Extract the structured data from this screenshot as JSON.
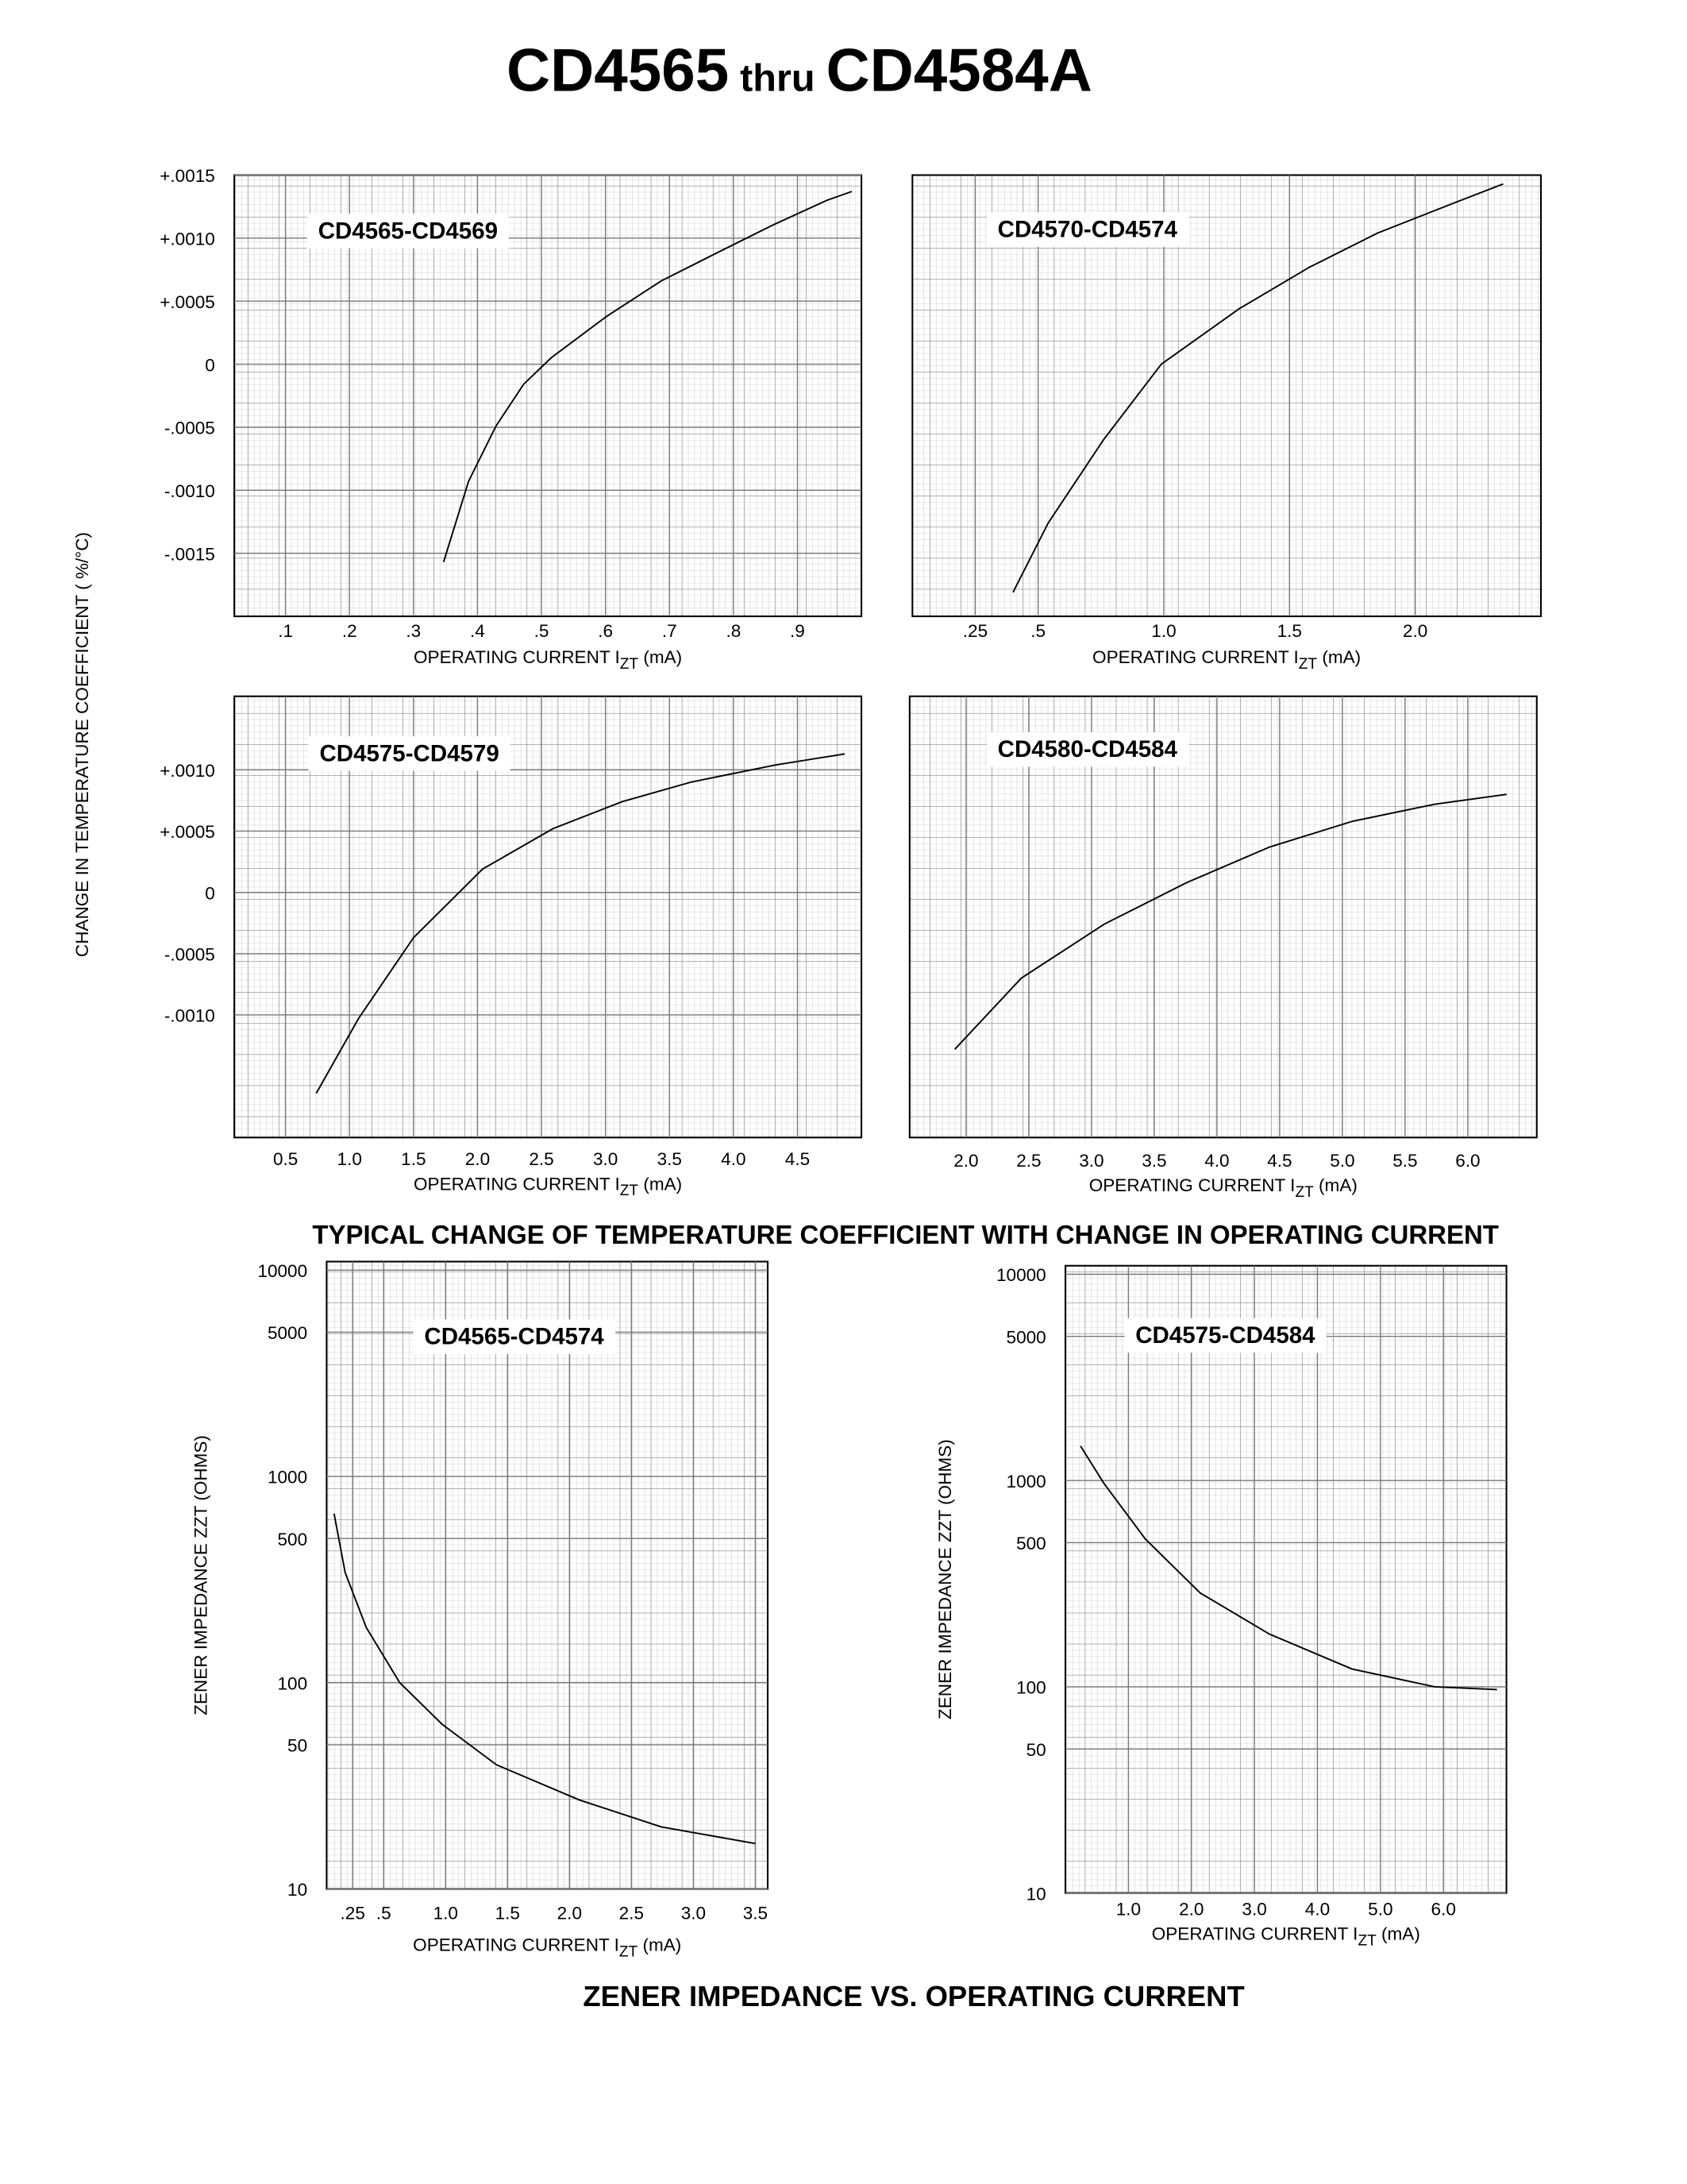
{
  "title_parts": [
    "CD4565",
    "thru",
    "CD4584A"
  ],
  "temp_ylabel": "CHANGE IN TEMPERATURE COEFFICIENT ( %/°C)",
  "caption_temp": "TYPICAL CHANGE OF TEMPERATURE COEFFICIENT WITH CHANGE IN OPERATING CURRENT",
  "caption_zener": "ZENER IMPEDANCE VS. OPERATING CURRENT",
  "chart_data": [
    {
      "type": "line",
      "title": "CD4565-CD4569",
      "color": "#000000",
      "xlabel": [
        "OPERATING CURRENT I",
        "ZT",
        " (mA)"
      ],
      "xlim": [
        0.02,
        1.0
      ],
      "ylim": [
        -0.002,
        0.0015
      ],
      "xticks": [
        {
          "value": 0.1,
          "label": ".1"
        },
        {
          "value": 0.2,
          "label": ".2"
        },
        {
          "value": 0.3,
          "label": ".3"
        },
        {
          "value": 0.4,
          "label": ".4"
        },
        {
          "value": 0.5,
          "label": ".5"
        },
        {
          "value": 0.6,
          "label": ".6"
        },
        {
          "value": 0.7,
          "label": ".7"
        },
        {
          "value": 0.8,
          "label": ".8"
        },
        {
          "value": 0.9,
          "label": ".9"
        }
      ],
      "yticks": [
        {
          "value": 0.0015,
          "label": "+.0015"
        },
        {
          "value": 0.001,
          "label": "+.0010"
        },
        {
          "value": 0.0005,
          "label": "+.0005"
        },
        0,
        {
          "value": -0.0005,
          "label": "-.0005"
        },
        {
          "value": -0.001,
          "label": "-.0010"
        },
        {
          "value": -0.0015,
          "label": "-.0015"
        }
      ],
      "x": [
        0.347,
        0.386,
        0.429,
        0.472,
        0.515,
        0.602,
        0.687,
        0.773,
        0.86,
        0.946,
        0.985
      ],
      "values": [
        -0.00157,
        -0.00093,
        -0.00049,
        -0.00016,
        5e-05,
        0.00038,
        0.00066,
        0.00088,
        0.0011,
        0.0013,
        0.00137
      ]
    },
    {
      "type": "line",
      "title": "CD4570-CD4574",
      "color": "#000000",
      "xlabel": [
        "OPERATING CURRENT I",
        "ZT",
        " (mA)"
      ],
      "xlim": [
        0,
        2.5
      ],
      "ylim": [
        -0.002,
        0.0015
      ],
      "xticks": [
        {
          "value": 0.25,
          "label": ".25"
        },
        {
          "value": 0.5,
          "label": ".5"
        },
        {
          "value": 1.0,
          "label": "1.0"
        },
        1.5,
        {
          "value": 2.0,
          "label": "2.0"
        }
      ],
      "x": [
        0.4,
        0.54,
        0.76,
        0.99,
        1.3,
        1.58,
        1.85,
        2.13,
        2.35
      ],
      "values": [
        -0.00181,
        -0.00126,
        -0.0006,
        0,
        0.00044,
        0.00077,
        0.00104,
        0.00126,
        0.00143
      ]
    },
    {
      "type": "line",
      "title": "CD4575-CD4579",
      "color": "#000000",
      "xlabel": [
        "OPERATING CURRENT I",
        "ZT",
        " (mA)"
      ],
      "xlim": [
        0.1,
        5.0
      ],
      "ylim": [
        -0.002,
        0.0016
      ],
      "xticks": [
        0.5,
        {
          "value": 1.0,
          "label": "1.0"
        },
        1.5,
        {
          "value": 2.0,
          "label": "2.0"
        },
        2.5,
        {
          "value": 3.0,
          "label": "3.0"
        },
        3.5,
        {
          "value": 4.0,
          "label": "4.0"
        },
        4.5
      ],
      "yticks": [
        {
          "value": 0.001,
          "label": "+.0010"
        },
        {
          "value": 0.0005,
          "label": "+.0005"
        },
        0,
        {
          "value": -0.0005,
          "label": "-.0005"
        },
        {
          "value": -0.001,
          "label": "-.0010"
        }
      ],
      "x": [
        0.74,
        1.07,
        1.5,
        2.04,
        2.59,
        3.13,
        3.67,
        4.33,
        4.87
      ],
      "values": [
        -0.00164,
        -0.00103,
        -0.00037,
        0.00019,
        0.00052,
        0.00074,
        0.0009,
        0.00104,
        0.00113
      ]
    },
    {
      "type": "line",
      "title": "CD4580-CD4584",
      "color": "#000000",
      "xlabel": [
        "OPERATING CURRENT I",
        "ZT",
        " (mA)"
      ],
      "xlim": [
        1.55,
        6.55
      ],
      "ylim": [
        -0.002,
        0.0016
      ],
      "xticks": [
        {
          "value": 2.0,
          "label": "2.0"
        },
        2.5,
        {
          "value": 3.0,
          "label": "3.0"
        },
        3.5,
        {
          "value": 4.0,
          "label": "4.0"
        },
        4.5,
        {
          "value": 5.0,
          "label": "5.0"
        },
        5.5,
        {
          "value": 6.0,
          "label": "6.0"
        }
      ],
      "x": [
        1.91,
        2.44,
        3.1,
        3.76,
        4.42,
        5.08,
        5.74,
        6.31
      ],
      "values": [
        -0.00128,
        -0.0007,
        -0.00026,
        8e-05,
        0.00037,
        0.00058,
        0.00072,
        0.0008
      ]
    },
    {
      "type": "line",
      "title": "CD4565-CD4574",
      "color": "#000000",
      "log_y": true,
      "ylabel": "ZENER IMPEDANCE ZZT (OHMS)",
      "xlabel": [
        "OPERATING CURRENT I",
        "ZT",
        " (mA)"
      ],
      "xlim": [
        0.04,
        3.6
      ],
      "ylim": [
        10,
        11000
      ],
      "xticks": [
        {
          "value": 0.25,
          "label": ".25"
        },
        {
          "value": 0.5,
          "label": ".5"
        },
        {
          "value": 1.0,
          "label": "1.0"
        },
        1.5,
        {
          "value": 2.0,
          "label": "2.0"
        },
        2.5,
        {
          "value": 3.0,
          "label": "3.0"
        },
        3.5
      ],
      "yticks": [
        10000,
        5000,
        1000,
        500,
        100,
        50,
        10
      ],
      "x": [
        0.1,
        0.19,
        0.36,
        0.63,
        0.97,
        1.41,
        2.08,
        2.74,
        3.5
      ],
      "values": [
        660,
        341,
        185,
        100,
        63,
        40,
        27,
        20,
        16.6
      ]
    },
    {
      "type": "line",
      "title": "CD4575-CD4584",
      "color": "#000000",
      "log_y": true,
      "ylabel": "ZENER IMPEDANCE ZZT (OHMS)",
      "xlabel": [
        "OPERATING CURRENT I",
        "ZT",
        " (mA)"
      ],
      "xlim": [
        0,
        7.0
      ],
      "ylim": [
        10,
        11000
      ],
      "xticks": [
        {
          "value": 1.0,
          "label": "1.0"
        },
        {
          "value": 2.0,
          "label": "2.0"
        },
        {
          "value": 3.0,
          "label": "3.0"
        },
        {
          "value": 4.0,
          "label": "4.0"
        },
        {
          "value": 5.0,
          "label": "5.0"
        },
        {
          "value": 6.0,
          "label": "6.0"
        }
      ],
      "yticks": [
        10000,
        5000,
        1000,
        500,
        100,
        50,
        10
      ],
      "x": [
        0.24,
        0.61,
        1.27,
        2.14,
        3.24,
        4.55,
        5.86,
        6.85
      ],
      "values": [
        1470,
        970,
        520,
        285,
        180,
        122,
        100,
        97
      ]
    }
  ]
}
